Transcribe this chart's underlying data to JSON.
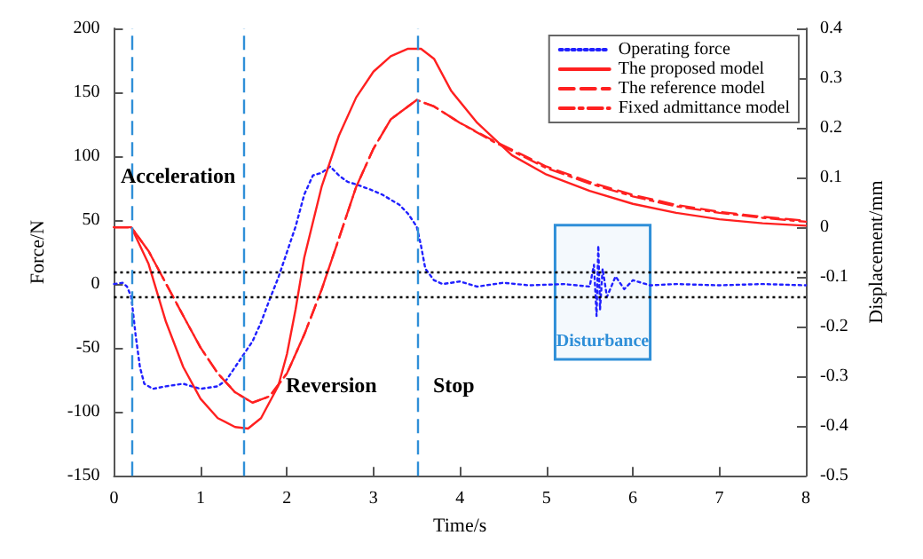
{
  "chart_data": {
    "type": "line",
    "xlabel": "Time/s",
    "ylabel": "Force/N",
    "y2label": "Displacement/mm",
    "xlim": [
      0,
      8
    ],
    "xticks": [
      0,
      1,
      2,
      3,
      4,
      5,
      6,
      7,
      8
    ],
    "ylim": [
      -150,
      200
    ],
    "yticks": [
      -150,
      -100,
      -50,
      0,
      50,
      100,
      150,
      200
    ],
    "y2lim": [
      -0.5,
      0.4
    ],
    "y2ticks": [
      -0.5,
      -0.4,
      -0.3,
      -0.2,
      -0.1,
      0,
      0.1,
      0.2,
      0.3,
      0.4
    ],
    "grid": false,
    "legend": "top right",
    "marker": "none",
    "series": [
      {
        "name": "Operating force",
        "color": "#2020ff",
        "line_style": "dotted",
        "x": [
          0,
          0.1,
          0.15,
          0.2,
          0.25,
          0.3,
          0.35,
          0.45,
          0.6,
          0.8,
          1.0,
          1.2,
          1.3,
          1.4,
          1.5,
          1.6,
          1.7,
          1.8,
          1.9,
          2.0,
          2.1,
          2.2,
          2.3,
          2.4,
          2.5,
          2.6,
          2.7,
          2.8,
          3.0,
          3.1,
          3.2,
          3.3,
          3.4,
          3.5,
          3.55,
          3.6,
          3.7,
          3.8,
          4.0,
          4.2,
          4.5,
          4.8,
          5.2,
          5.5,
          5.55,
          5.58,
          5.6,
          5.62,
          5.65,
          5.7,
          5.8,
          5.9,
          6.0,
          6.2,
          6.5,
          7,
          7.5,
          8
        ],
        "values": [
          0,
          1,
          -2,
          -10,
          -40,
          -65,
          -78,
          -82,
          -80,
          -78,
          -82,
          -80,
          -75,
          -65,
          -55,
          -45,
          -30,
          -12,
          5,
          25,
          45,
          70,
          85,
          87,
          92,
          85,
          80,
          78,
          73,
          70,
          66,
          62,
          55,
          45,
          30,
          12,
          3,
          0,
          2,
          -2,
          1,
          -1,
          0,
          -2,
          15,
          -25,
          30,
          -20,
          12,
          -10,
          6,
          -4,
          3,
          -1,
          0,
          -1,
          0,
          -1
        ]
      },
      {
        "name": "The proposed model",
        "color": "#ff2020",
        "line_style": "solid",
        "axis": "y2",
        "x": [
          0,
          0.2,
          0.4,
          0.6,
          0.8,
          1.0,
          1.2,
          1.4,
          1.55,
          1.7,
          1.9,
          2.0,
          2.1,
          2.2,
          2.4,
          2.6,
          2.8,
          3.0,
          3.2,
          3.4,
          3.55,
          3.7,
          3.9,
          4.2,
          4.6,
          5,
          5.5,
          6,
          6.5,
          7,
          7.5,
          8
        ],
        "values": [
          0,
          0,
          -0.074,
          -0.19,
          -0.281,
          -0.345,
          -0.384,
          -0.402,
          -0.405,
          -0.384,
          -0.319,
          -0.255,
          -0.165,
          -0.061,
          0.081,
          0.184,
          0.261,
          0.313,
          0.344,
          0.359,
          0.359,
          0.339,
          0.274,
          0.21,
          0.145,
          0.106,
          0.073,
          0.047,
          0.029,
          0.016,
          0.008,
          0.003
        ]
      },
      {
        "name": "The reference model",
        "color": "#ff2020",
        "line_style": "dashed",
        "axis": "y2",
        "x": [
          0,
          0.2,
          0.4,
          0.6,
          0.8,
          1.0,
          1.2,
          1.4,
          1.6,
          1.8,
          2.0,
          2.2,
          2.4,
          2.6,
          2.8,
          3.0,
          3.2,
          3.5,
          3.7,
          4.0,
          4.4,
          5,
          5.5,
          6,
          6.5,
          7,
          7.5,
          8
        ],
        "values": [
          0,
          0,
          -0.048,
          -0.113,
          -0.178,
          -0.242,
          -0.294,
          -0.332,
          -0.353,
          -0.34,
          -0.294,
          -0.216,
          -0.126,
          -0.023,
          0.081,
          0.158,
          0.217,
          0.256,
          0.243,
          0.21,
          0.173,
          0.122,
          0.091,
          0.065,
          0.045,
          0.031,
          0.021,
          0.013
        ]
      },
      {
        "name": "Fixed admittance model",
        "color": "#ff2020",
        "line_style": "dashdot",
        "axis": "y2",
        "x": [
          0,
          0.2,
          0.4,
          0.6,
          0.8,
          1.0,
          1.2,
          1.4,
          1.6,
          1.8,
          2.0,
          2.2,
          2.4,
          2.6,
          2.8,
          3.0,
          3.2,
          3.5,
          3.7,
          4.0,
          4.4,
          5,
          5.5,
          6,
          6.5,
          7,
          7.5,
          8
        ],
        "values": [
          0,
          0,
          -0.048,
          -0.113,
          -0.178,
          -0.242,
          -0.294,
          -0.332,
          -0.353,
          -0.34,
          -0.294,
          -0.216,
          -0.126,
          -0.023,
          0.081,
          0.158,
          0.217,
          0.256,
          0.243,
          0.21,
          0.171,
          0.119,
          0.088,
          0.062,
          0.042,
          0.029,
          0.019,
          0.011
        ]
      }
    ],
    "ref_lines": [
      {
        "axis": "y",
        "value": 10,
        "color": "#000000",
        "line_style": "dotted"
      },
      {
        "axis": "y",
        "value": -10,
        "color": "#000000",
        "line_style": "dotted"
      },
      {
        "axis": "x",
        "value": 0.2,
        "color": "#2f8fd8",
        "line_style": "dashed"
      },
      {
        "axis": "x",
        "value": 1.5,
        "color": "#2f8fd8",
        "line_style": "dashed"
      },
      {
        "axis": "x",
        "value": 3.5,
        "color": "#2f8fd8",
        "line_style": "dashed"
      }
    ],
    "bands": [
      {
        "axis": "x",
        "from": 5.1,
        "to": 6.2,
        "label": "Disturbance",
        "color": "#2f8fd8"
      }
    ],
    "annotations": [
      "Acceleration",
      "Reversion",
      "Stop"
    ]
  }
}
